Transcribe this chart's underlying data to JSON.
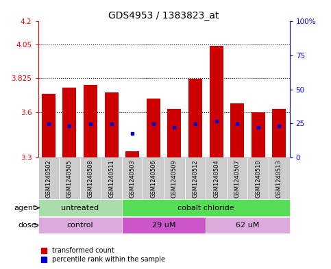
{
  "title": "GDS4953 / 1383823_at",
  "samples": [
    "GSM1240502",
    "GSM1240505",
    "GSM1240508",
    "GSM1240511",
    "GSM1240503",
    "GSM1240506",
    "GSM1240509",
    "GSM1240512",
    "GSM1240504",
    "GSM1240507",
    "GSM1240510",
    "GSM1240513"
  ],
  "bar_tops": [
    3.72,
    3.76,
    3.78,
    3.73,
    3.34,
    3.69,
    3.62,
    3.82,
    4.04,
    3.66,
    3.6,
    3.62
  ],
  "bar_bottom": 3.3,
  "blue_dot_y": [
    3.52,
    3.51,
    3.52,
    3.52,
    3.46,
    3.52,
    3.5,
    3.52,
    3.54,
    3.52,
    3.5,
    3.51
  ],
  "ylim": [
    3.3,
    4.2
  ],
  "yticks": [
    3.3,
    3.6,
    3.825,
    4.05,
    4.2
  ],
  "ytick_labels": [
    "3.3",
    "3.6",
    "3.825",
    "4.05",
    "4.2"
  ],
  "y2ticks": [
    0,
    25,
    50,
    75,
    100
  ],
  "y2tick_labels": [
    "0",
    "25",
    "50",
    "75",
    "100%"
  ],
  "hlines": [
    3.6,
    3.825,
    4.05
  ],
  "bar_color": "#cc0000",
  "dot_color": "#0000cc",
  "bar_width": 0.65,
  "agent_groups": [
    {
      "label": "untreated",
      "start": 0,
      "end": 4,
      "color": "#aaddaa"
    },
    {
      "label": "cobalt chloride",
      "start": 4,
      "end": 12,
      "color": "#55dd55"
    }
  ],
  "dose_groups": [
    {
      "label": "control",
      "start": 0,
      "end": 4,
      "color": "#ddaadd"
    },
    {
      "label": "29 uM",
      "start": 4,
      "end": 8,
      "color": "#cc55cc"
    },
    {
      "label": "62 uM",
      "start": 8,
      "end": 12,
      "color": "#ddaadd"
    }
  ],
  "xlabel_agent": "agent",
  "xlabel_dose": "dose",
  "legend_bar_label": "transformed count",
  "legend_dot_label": "percentile rank within the sample",
  "sample_bg_color": "#cccccc",
  "plot_bg": "#ffffff",
  "title_fontsize": 10,
  "tick_fontsize": 7.5,
  "sample_fontsize": 6,
  "label_fontsize": 8
}
